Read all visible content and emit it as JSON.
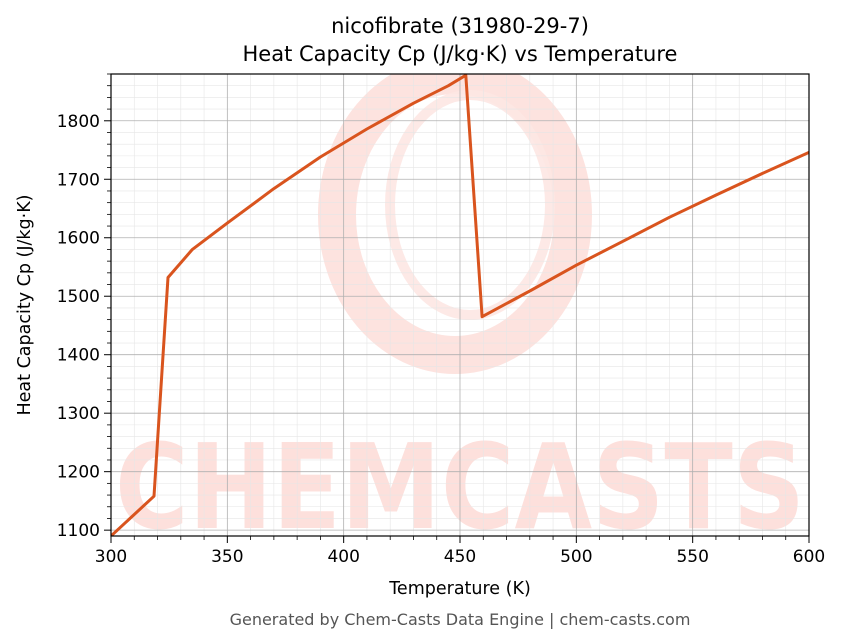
{
  "chart_data": {
    "type": "line",
    "title": "nicofibrate (31980-29-7)",
    "subtitle": "Heat Capacity Cp (J/kg·K) vs Temperature",
    "xlabel": "Temperature (K)",
    "ylabel": "Heat Capacity Cp (J/kg·K)",
    "xlim": [
      300,
      600
    ],
    "ylim": [
      1090,
      1880
    ],
    "xticks": [
      300,
      350,
      400,
      450,
      500,
      550,
      600
    ],
    "yticks": [
      1100,
      1200,
      1300,
      1400,
      1500,
      1600,
      1700,
      1800
    ],
    "grid": true,
    "series": [
      {
        "color": "#d9541e",
        "x": [
          300,
          318.5,
          324.5,
          335,
          350,
          370,
          390,
          410,
          430,
          445,
          452.5,
          459.5,
          480,
          500,
          520,
          540,
          560,
          580,
          600
        ],
        "y": [
          1090,
          1158,
          1532,
          1580,
          1625,
          1684,
          1738,
          1786,
          1830,
          1860,
          1878,
          1465,
          1509,
          1553,
          1594,
          1635,
          1673,
          1710,
          1746
        ]
      }
    ]
  },
  "watermark": {
    "text": "CHEMCASTS",
    "color": "#fde0dc"
  },
  "footer": "Generated by Chem-Casts Data Engine | chem-casts.com"
}
